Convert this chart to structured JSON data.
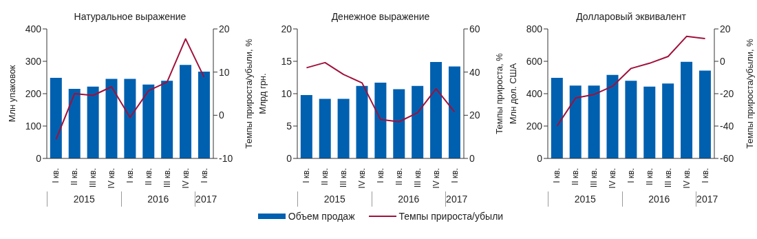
{
  "chart_data": [
    {
      "type": "bar",
      "title": "Натуральное выражение",
      "ylabel": "Млн упаковок",
      "y2label": "Темпы прироста/убыли, %",
      "categories": [
        "I кв.",
        "II кв.",
        "III кв.",
        "IV кв.",
        "I кв.",
        "II кв.",
        "III кв.",
        "IV кв.",
        "I кв."
      ],
      "annotations": [
        "2015",
        "2016",
        "2017"
      ],
      "legend": "bottom",
      "series": [
        {
          "name": "Объем продаж",
          "color": "#0060b0",
          "values": [
            249,
            215,
            222,
            246,
            246,
            228,
            240,
            289,
            268
          ]
        },
        {
          "name": "Темпы прироста/убыли",
          "type": "line",
          "axis": "y2",
          "color": "#a0103a",
          "values": [
            -5.6,
            5.0,
            4.6,
            6.6,
            -0.5,
            5.7,
            7.7,
            17.7,
            8.8
          ]
        }
      ],
      "ylim": [
        0,
        400
      ],
      "yticks": [
        0,
        100,
        200,
        300,
        400
      ],
      "y2lim": [
        -10,
        20
      ],
      "y2ticks": [
        -10,
        0,
        10,
        20
      ]
    },
    {
      "type": "bar",
      "title": "Денежное выражение",
      "ylabel": "Млрд грн.",
      "y2label": "Темпы прироста, %",
      "categories": [
        "I кв.",
        "II кв.",
        "III кв.",
        "IV кв.",
        "I кв.",
        "II кв.",
        "III кв.",
        "IV кв.",
        "I кв."
      ],
      "annotations": [
        "2015",
        "2016",
        "2017"
      ],
      "series": [
        {
          "color": "#0060b0",
          "values": [
            9.8,
            9.2,
            9.2,
            11.2,
            11.7,
            10.7,
            11.2,
            14.9,
            14.2
          ]
        },
        {
          "type": "line",
          "axis": "y2",
          "color": "#a0103a",
          "values": [
            42.0,
            44.4,
            38.9,
            35.0,
            18.0,
            17.0,
            21.2,
            32.3,
            21.5
          ]
        }
      ],
      "ylim": [
        0,
        20
      ],
      "yticks": [
        0,
        5,
        10,
        15,
        20
      ],
      "y2lim": [
        0,
        60
      ],
      "y2ticks": [
        0,
        20,
        40,
        60
      ]
    },
    {
      "type": "bar",
      "title": "Долларовый эквивалент",
      "ylabel": "Млн дол. США",
      "y2label": "Темпы прироста/убыли, %",
      "categories": [
        "I кв.",
        "II кв.",
        "III кв.",
        "IV кв.",
        "I кв.",
        "II кв.",
        "III кв.",
        "IV кв.",
        "I кв."
      ],
      "annotations": [
        "2015",
        "2016",
        "2017"
      ],
      "series": [
        {
          "color": "#0060b0",
          "values": [
            498,
            450,
            450,
            516,
            480,
            444,
            463,
            597,
            543
          ]
        },
        {
          "type": "line",
          "axis": "y2",
          "color": "#a0103a",
          "values": [
            -40,
            -22.7,
            -20.5,
            -15.4,
            -4.4,
            -1.2,
            3.0,
            15.4,
            14.0
          ]
        }
      ],
      "ylim": [
        0,
        800
      ],
      "yticks": [
        0,
        200,
        400,
        600,
        800
      ],
      "y2lim": [
        -60,
        20
      ],
      "y2ticks": [
        -60,
        -40,
        -20,
        0,
        20
      ]
    }
  ]
}
